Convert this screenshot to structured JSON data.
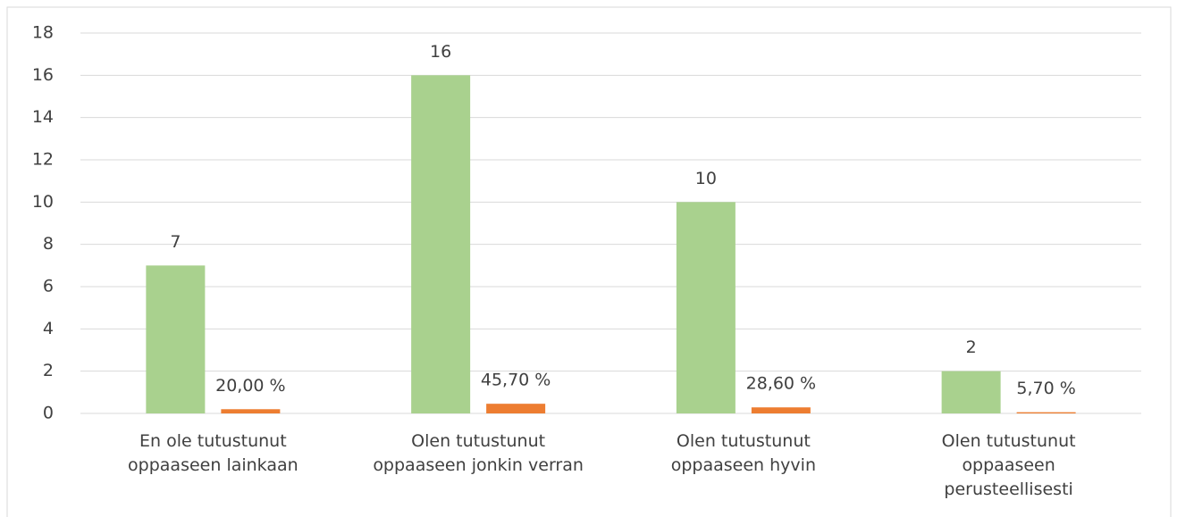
{
  "chart_data": {
    "type": "bar",
    "categories": [
      "En ole tutustunut oppaaseen lainkaan",
      "Olen tutustunut oppaaseen jonkin verran",
      "Olen tutustunut oppaaseen hyvin",
      "Olen tutustunut oppaaseen perusteellisesti"
    ],
    "series": [
      {
        "color": "#a9d18e",
        "values": [
          7,
          16,
          10,
          2
        ]
      },
      {
        "color": "#ed7d31",
        "values": [
          0.2,
          0.457,
          0.286,
          0.057
        ],
        "value_labels": [
          "20,00 %",
          "45,70 %",
          "28,60 %",
          "5,70 %"
        ]
      }
    ],
    "ylim": [
      0,
      18
    ],
    "yticks": [
      0,
      2,
      4,
      6,
      8,
      10,
      12,
      14,
      16,
      18
    ],
    "grid": true
  }
}
